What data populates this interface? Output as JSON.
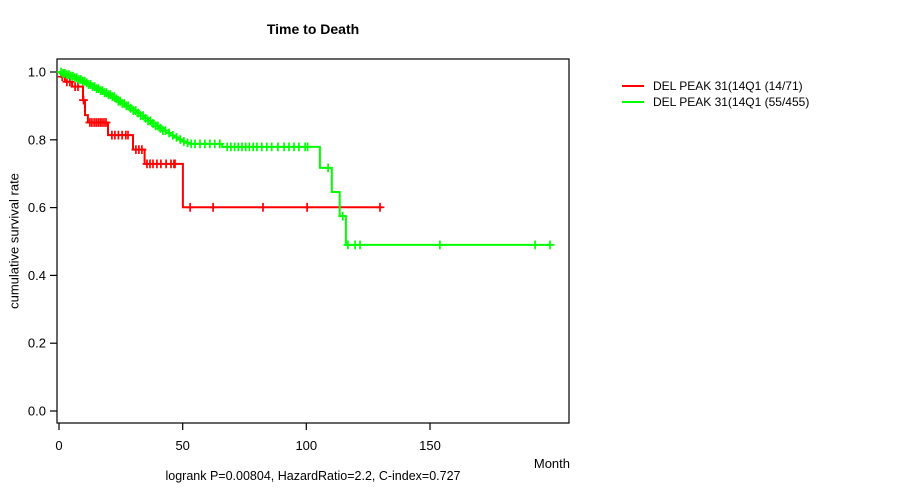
{
  "chart_data": {
    "type": "line",
    "subtype": "kaplan-meier-step",
    "title": "Time to Death",
    "xlabel": "Month",
    "ylabel": "cumulative survival rate",
    "annotation": "logrank P=0.00804, HazardRatio=2.2, C-index=0.727",
    "xlim": [
      0,
      206
    ],
    "ylim": [
      0,
      1.0
    ],
    "xticks": [
      0,
      50,
      100,
      150
    ],
    "yticks": [
      0.0,
      0.2,
      0.4,
      0.6,
      0.8,
      1.0
    ],
    "grid": false,
    "legend_position": "top-right-outside",
    "axis_color": "#000000",
    "background_color": "#ffffff",
    "series": [
      {
        "name": "DEL PEAK 31(14Q1 (14/71)",
        "color": "#ff0000",
        "end_month": 130.6,
        "steps": [
          [
            0,
            1.0
          ],
          [
            0.8,
            0.986
          ],
          [
            2.4,
            0.971
          ],
          [
            5.3,
            0.957
          ],
          [
            9.7,
            0.917
          ],
          [
            10.5,
            0.873
          ],
          [
            11.7,
            0.851
          ],
          [
            19.8,
            0.814
          ],
          [
            29.9,
            0.771
          ],
          [
            34.6,
            0.729
          ],
          [
            50.1,
            0.601
          ]
        ],
        "censor_months": [
          1.3,
          3.2,
          4.4,
          6.5,
          7.7,
          9.9,
          12.5,
          13.3,
          14.2,
          15.0,
          15.8,
          16.6,
          17.4,
          18.2,
          19.0,
          21.4,
          22.6,
          24.0,
          25.5,
          27.0,
          27.9,
          31.1,
          32.3,
          33.5,
          35.6,
          36.8,
          38.0,
          39.6,
          41.2,
          43.3,
          45.3,
          46.5,
          46.9,
          53.0,
          62.3,
          82.5,
          100.3,
          129.8
        ]
      },
      {
        "name": "DEL PEAK 31(14Q1 (55/455)",
        "color": "#00ff00",
        "end_month": 199,
        "steps": [
          [
            0,
            1.0
          ],
          [
            1.5,
            0.996
          ],
          [
            3,
            0.992
          ],
          [
            4.5,
            0.988
          ],
          [
            6,
            0.983
          ],
          [
            7.5,
            0.978
          ],
          [
            9,
            0.973
          ],
          [
            10.5,
            0.968
          ],
          [
            12,
            0.963
          ],
          [
            13.5,
            0.957
          ],
          [
            15,
            0.951
          ],
          [
            16.5,
            0.945
          ],
          [
            18,
            0.939
          ],
          [
            19.5,
            0.933
          ],
          [
            21,
            0.927
          ],
          [
            22.5,
            0.921
          ],
          [
            24,
            0.914
          ],
          [
            25.5,
            0.907
          ],
          [
            27,
            0.9
          ],
          [
            28.5,
            0.893
          ],
          [
            30,
            0.886
          ],
          [
            31.5,
            0.879
          ],
          [
            33,
            0.871
          ],
          [
            34.5,
            0.863
          ],
          [
            36,
            0.856
          ],
          [
            37.5,
            0.848
          ],
          [
            39,
            0.841
          ],
          [
            40.5,
            0.834
          ],
          [
            42,
            0.827
          ],
          [
            43.5,
            0.82
          ],
          [
            45,
            0.813
          ],
          [
            46.5,
            0.807
          ],
          [
            48,
            0.801
          ],
          [
            50,
            0.795
          ],
          [
            52,
            0.791
          ],
          [
            53.5,
            0.788
          ],
          [
            66,
            0.779
          ],
          [
            105.5,
            0.717
          ],
          [
            110.3,
            0.646
          ],
          [
            113.5,
            0.575
          ],
          [
            116,
            0.49
          ]
        ],
        "censor_months": [
          0.8,
          1.6,
          2.4,
          3.2,
          4.0,
          4.8,
          5.6,
          6.4,
          7.2,
          8.0,
          8.8,
          9.6,
          10.4,
          11.2,
          12.0,
          12.8,
          13.6,
          14.4,
          15.2,
          16.0,
          16.8,
          17.6,
          18.4,
          19.2,
          20.0,
          20.8,
          21.6,
          22.4,
          23.2,
          24.0,
          24.8,
          25.6,
          26.4,
          27.2,
          28.0,
          29.0,
          30.0,
          31.0,
          32.0,
          33.0,
          34.0,
          35.0,
          36.0,
          37.0,
          38.0,
          39.0,
          40.0,
          41.0,
          42.0,
          43.0,
          44.5,
          46.0,
          47.5,
          49.0,
          50.5,
          52.0,
          53.5,
          55.0,
          57.0,
          59.0,
          61.0,
          63.0,
          65.0,
          68.0,
          69.5,
          71.0,
          72.5,
          74.0,
          75.5,
          77.0,
          78.5,
          80.0,
          82.0,
          84.0,
          86.0,
          88.5,
          91.0,
          93.0,
          95.0,
          97.0,
          99.5,
          100.5,
          108.8,
          114.7,
          116.8,
          119.7,
          121.7,
          154.0,
          192.5,
          198.5
        ]
      }
    ]
  }
}
